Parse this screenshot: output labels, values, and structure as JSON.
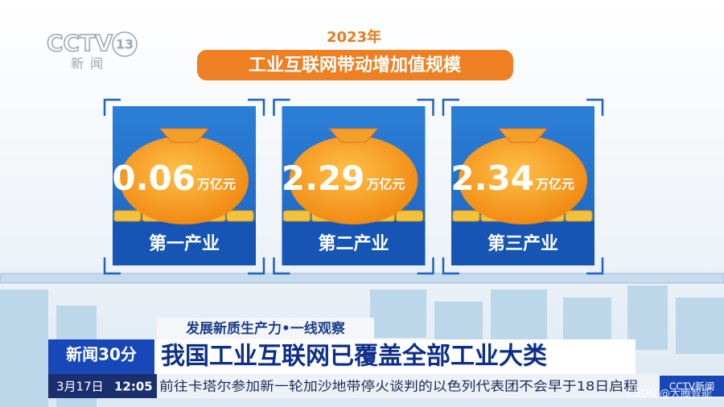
{
  "logo": {
    "channel": "CCTV",
    "number": "13",
    "sub": "新闻"
  },
  "infographic": {
    "year": "2023年",
    "title": "工业互联网带动增加值规模",
    "cards": [
      {
        "value": 0.06,
        "unit": "万亿元",
        "label": "第一产业"
      },
      {
        "value": 2.29,
        "unit": "万亿元",
        "label": "第二产业"
      },
      {
        "value": 2.34,
        "unit": "万亿元",
        "label": "第三产业"
      }
    ]
  },
  "banner": {
    "tag": "发展新质生产力•一线观察",
    "program": "新闻30分",
    "headline": "我国工业互联网已覆盖全部工业大类"
  },
  "ticker": {
    "date": "3月17日",
    "time": "12:05",
    "text": "前往卡塔尔参加新一轮加沙地带停火谈判的以色列代表团不会早于18日启程",
    "corner": "CCTV新闻"
  },
  "watermark": "CSDN @大腾智能"
}
